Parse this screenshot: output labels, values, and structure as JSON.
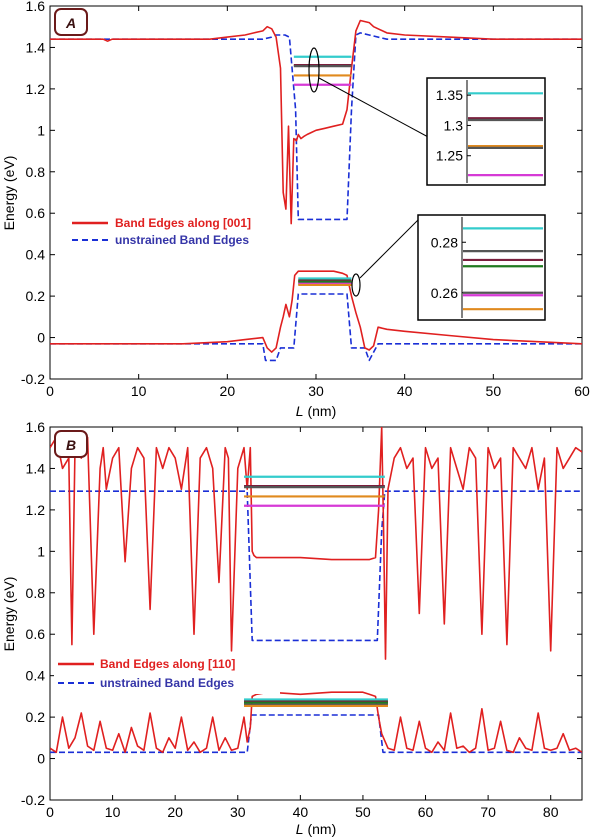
{
  "chart_data": [
    {
      "type": "line",
      "panel_label": "A",
      "xlabel_italic": "L",
      "xlabel_unit": " (nm)",
      "ylabel": "Energy (eV)",
      "xlim": [
        0,
        60
      ],
      "ylim": [
        -0.2,
        1.6
      ],
      "xticks": [
        "0",
        "10",
        "20",
        "30",
        "40",
        "50",
        "60"
      ],
      "yticks": [
        "-0.2",
        "0",
        "0.2",
        "0.4",
        "0.6",
        "0.8",
        "1",
        "1.2",
        "1.4",
        "1.6"
      ],
      "legend": [
        {
          "label": "Band Edges along [001]",
          "color": "#e02020",
          "style": "solid"
        },
        {
          "label": "unstrained Band Edges",
          "color": "#1a2fd6",
          "style": "dashed"
        }
      ],
      "series": [
        {
          "name": "Band Edges along [001]",
          "color": "#e02020",
          "segments": [
            {
              "x": [
                0,
                2,
                4,
                6,
                6.5,
                7,
                8,
                10,
                12,
                14,
                16,
                18,
                20,
                22,
                23,
                24,
                24.5,
                25,
                25.5,
                26,
                26.3,
                26.6,
                26.9,
                27.2,
                27.5,
                27.8,
                28,
                28.3,
                28.6,
                29,
                29.5,
                30,
                31,
                32,
                33,
                33.5,
                34,
                34.5,
                35,
                36,
                36.5,
                37,
                38,
                40,
                45,
                50,
                55,
                60
              ],
              "y": [
                1.44,
                1.44,
                1.44,
                1.44,
                1.43,
                1.44,
                1.44,
                1.44,
                1.44,
                1.44,
                1.44,
                1.44,
                1.45,
                1.46,
                1.47,
                1.48,
                1.5,
                1.49,
                1.45,
                1.3,
                0.7,
                0.62,
                1.02,
                0.55,
                0.96,
                0.95,
                0.98,
                0.96,
                0.97,
                0.98,
                0.99,
                1.0,
                1.01,
                1.02,
                1.03,
                1.1,
                1.3,
                1.48,
                1.53,
                1.52,
                1.5,
                1.49,
                1.47,
                1.46,
                1.45,
                1.44,
                1.44,
                1.44
              ]
            },
            {
              "x": [
                0,
                5,
                10,
                15,
                20,
                22,
                24,
                24.5,
                25,
                25.5,
                26,
                26.3,
                26.6,
                27,
                27.3,
                27.6,
                28,
                29,
                30,
                31,
                32,
                33,
                33.5,
                34,
                34.5,
                35,
                35.5,
                36,
                36.5,
                37,
                38,
                40,
                45,
                50,
                55,
                60
              ],
              "y": [
                -0.03,
                -0.03,
                -0.03,
                -0.03,
                -0.02,
                -0.01,
                0.0,
                -0.05,
                -0.07,
                -0.05,
                0.05,
                0.1,
                0.16,
                0.1,
                0.18,
                0.3,
                0.32,
                0.32,
                0.32,
                0.32,
                0.32,
                0.31,
                0.3,
                0.2,
                0.12,
                0.05,
                -0.05,
                -0.06,
                -0.04,
                0.05,
                0.04,
                0.03,
                0.01,
                -0.01,
                -0.02,
                -0.03
              ]
            }
          ]
        },
        {
          "name": "unstrained Band Edges",
          "color": "#1a2fd6",
          "segments": [
            {
              "x": [
                0,
                22,
                24,
                25,
                25.5,
                26.5,
                27,
                27.7,
                28,
                33.5,
                34,
                34.5,
                35,
                36,
                38,
                60
              ],
              "y": [
                1.44,
                1.44,
                1.44,
                1.45,
                1.46,
                1.46,
                1.45,
                1.1,
                0.57,
                0.57,
                1.1,
                1.46,
                1.47,
                1.46,
                1.44,
                1.44
              ]
            },
            {
              "x": [
                0,
                24,
                24.3,
                25.5,
                26,
                27.5,
                28,
                33.5,
                34,
                35.5,
                36,
                37,
                60
              ],
              "y": [
                -0.03,
                -0.03,
                -0.11,
                -0.11,
                -0.05,
                -0.05,
                0.21,
                0.21,
                -0.05,
                -0.05,
                -0.11,
                -0.03,
                -0.03
              ]
            }
          ]
        }
      ],
      "levels": [
        {
          "x0": 27.5,
          "x1": 34,
          "y": 1.355,
          "color": "#33cccc"
        },
        {
          "x0": 27.5,
          "x1": 34,
          "y": 1.315,
          "color": "#7a1f3d"
        },
        {
          "x0": 27.5,
          "x1": 34,
          "y": 1.31,
          "color": "#555555"
        },
        {
          "x0": 27.5,
          "x1": 34,
          "y": 1.265,
          "color": "#e08a1e"
        },
        {
          "x0": 27.5,
          "x1": 34,
          "y": 1.22,
          "color": "#d63ad6"
        },
        {
          "x0": 28,
          "x1": 34,
          "y": 0.285,
          "color": "#33cccc"
        },
        {
          "x0": 28,
          "x1": 34,
          "y": 0.276,
          "color": "#555555"
        },
        {
          "x0": 28,
          "x1": 34,
          "y": 0.272,
          "color": "#7a1f3d"
        },
        {
          "x0": 28,
          "x1": 34,
          "y": 0.269,
          "color": "#1f7a1f"
        },
        {
          "x0": 28,
          "x1": 34,
          "y": 0.26,
          "color": "#555555"
        },
        {
          "x0": 28,
          "x1": 34,
          "y": 0.259,
          "color": "#d63ad6"
        },
        {
          "x0": 28,
          "x1": 34,
          "y": 0.254,
          "color": "#e08a1e"
        }
      ],
      "insets": [
        {
          "yticks": [
            "1.35",
            "1.3",
            "1.25"
          ],
          "tick_values": [
            1.35,
            1.3,
            1.25
          ],
          "ylim": [
            1.205,
            1.375
          ],
          "levels": [
            {
              "y": 1.353,
              "color": "#33cccc"
            },
            {
              "y": 1.312,
              "color": "#7a1f3d"
            },
            {
              "y": 1.309,
              "color": "#555555"
            },
            {
              "y": 1.266,
              "color": "#e08a1e"
            },
            {
              "y": 1.263,
              "color": "#555555"
            },
            {
              "y": 1.218,
              "color": "#d63ad6"
            }
          ]
        },
        {
          "yticks": [
            "0.28",
            "0.26"
          ],
          "tick_values": [
            0.28,
            0.26
          ],
          "ylim": [
            0.25,
            0.29
          ],
          "levels": [
            {
              "y": 0.2855,
              "color": "#33cccc"
            },
            {
              "y": 0.2765,
              "color": "#555555"
            },
            {
              "y": 0.273,
              "color": "#7a1f3d"
            },
            {
              "y": 0.2705,
              "color": "#1f7a1f"
            },
            {
              "y": 0.26,
              "color": "#555555"
            },
            {
              "y": 0.259,
              "color": "#d63ad6"
            },
            {
              "y": 0.2535,
              "color": "#e08a1e"
            }
          ]
        }
      ]
    },
    {
      "type": "line",
      "panel_label": "B",
      "xlabel_italic": "L",
      "xlabel_unit": " (nm)",
      "ylabel": "Energy (eV)",
      "xlim": [
        0,
        85
      ],
      "ylim": [
        -0.2,
        1.6
      ],
      "xticks": [
        "0",
        "10",
        "20",
        "30",
        "40",
        "50",
        "60",
        "70",
        "80"
      ],
      "yticks": [
        "-0.2",
        "0",
        "0.2",
        "0.4",
        "0.6",
        "0.8",
        "1",
        "1.2",
        "1.4",
        "1.6"
      ],
      "legend": [
        {
          "label": "Band Edges along [110]",
          "color": "#e02020",
          "style": "solid"
        },
        {
          "label": "unstrained Band Edges",
          "color": "#1a2fd6",
          "style": "dashed"
        }
      ],
      "series": [
        {
          "name": "Band Edges along [110]",
          "color": "#e02020",
          "noisy": true,
          "segments": [
            {
              "x": [
                0,
                1,
                2,
                3,
                3.5,
                4,
                5,
                6,
                7,
                8,
                8.5,
                9,
                10,
                11,
                12,
                13,
                14,
                15,
                16,
                17,
                18,
                19,
                20,
                21,
                22,
                23,
                24,
                25,
                26,
                27,
                28,
                28.5,
                29,
                30,
                31,
                31.5,
                32,
                32.3,
                32.6,
                33,
                35,
                40,
                45,
                50,
                51,
                52,
                52.5,
                53,
                53.3,
                53.6,
                54,
                55,
                56,
                57,
                58,
                59,
                60,
                61,
                62,
                63,
                64,
                65,
                66,
                67,
                68,
                69,
                70,
                71,
                72,
                73,
                74,
                75,
                76,
                77,
                78,
                79,
                80,
                81,
                82,
                83,
                84,
                85
              ],
              "y": [
                1.5,
                1.55,
                1.4,
                1.45,
                0.55,
                1.5,
                1.45,
                1.55,
                0.6,
                1.4,
                1.5,
                1.3,
                1.45,
                1.5,
                0.95,
                1.4,
                1.5,
                1.45,
                0.72,
                1.5,
                1.4,
                1.5,
                1.45,
                1.3,
                1.5,
                0.6,
                1.45,
                1.5,
                1.4,
                0.85,
                1.5,
                1.45,
                0.52,
                1.4,
                1.5,
                1.3,
                1.5,
                1.0,
                0.98,
                0.97,
                0.97,
                0.97,
                0.96,
                0.96,
                0.96,
                0.97,
                1.2,
                1.6,
                1.1,
                0.48,
                1.3,
                1.45,
                1.5,
                1.4,
                1.45,
                0.7,
                1.5,
                1.4,
                1.45,
                0.65,
                1.5,
                1.4,
                1.3,
                1.5,
                1.45,
                0.6,
                1.5,
                1.4,
                1.45,
                0.55,
                1.5,
                1.45,
                1.4,
                1.5,
                1.3,
                1.45,
                0.52,
                1.5,
                1.4,
                1.45,
                1.5,
                1.48
              ]
            },
            {
              "x": [
                0,
                1,
                2,
                3,
                4,
                5,
                6,
                7,
                8,
                9,
                10,
                11,
                12,
                13,
                14,
                15,
                16,
                17,
                18,
                19,
                20,
                21,
                22,
                23,
                24,
                25,
                26,
                27,
                28,
                29,
                30,
                31,
                31.5,
                32,
                32.3,
                33,
                35,
                40,
                45,
                50,
                51,
                52,
                52.5,
                53,
                54,
                55,
                56,
                57,
                58,
                59,
                60,
                61,
                62,
                63,
                64,
                65,
                66,
                67,
                68,
                69,
                70,
                71,
                72,
                73,
                74,
                75,
                76,
                77,
                78,
                79,
                80,
                81,
                82,
                83,
                84,
                85
              ],
              "y": [
                0.05,
                0.03,
                0.2,
                0.05,
                0.1,
                0.22,
                0.06,
                0.04,
                0.18,
                0.05,
                0.04,
                0.12,
                0.03,
                0.15,
                0.06,
                0.04,
                0.22,
                0.05,
                0.03,
                0.1,
                0.05,
                0.2,
                0.04,
                0.08,
                0.03,
                0.05,
                0.2,
                0.04,
                0.1,
                0.04,
                0.05,
                0.2,
                0.08,
                0.15,
                0.3,
                0.31,
                0.32,
                0.31,
                0.32,
                0.32,
                0.31,
                0.3,
                0.2,
                0.12,
                0.05,
                0.04,
                0.2,
                0.05,
                0.04,
                0.18,
                0.05,
                0.03,
                0.08,
                0.04,
                0.22,
                0.05,
                0.06,
                0.03,
                0.05,
                0.24,
                0.04,
                0.05,
                0.18,
                0.04,
                0.03,
                0.1,
                0.05,
                0.04,
                0.22,
                0.05,
                0.04,
                0.05,
                0.12,
                0.04,
                0.05,
                0.03
              ]
            }
          ]
        },
        {
          "name": "unstrained Band Edges",
          "color": "#1a2fd6",
          "segments": [
            {
              "x": [
                0,
                31,
                31.5,
                32.3,
                52.3,
                53,
                53.5,
                85
              ],
              "y": [
                1.29,
                1.29,
                1.29,
                0.57,
                0.57,
                1.1,
                1.29,
                1.29
              ]
            },
            {
              "x": [
                0,
                31.5,
                32.2,
                52.5,
                53.2,
                85
              ],
              "y": [
                0.03,
                0.03,
                0.21,
                0.21,
                0.03,
                0.03
              ]
            }
          ]
        }
      ],
      "levels": [
        {
          "x0": 31,
          "x1": 53.5,
          "y": 1.36,
          "color": "#33cccc"
        },
        {
          "x0": 31,
          "x1": 53.5,
          "y": 1.315,
          "color": "#7a1f3d"
        },
        {
          "x0": 31,
          "x1": 53.5,
          "y": 1.31,
          "color": "#555555"
        },
        {
          "x0": 31,
          "x1": 53.5,
          "y": 1.265,
          "color": "#e08a1e"
        },
        {
          "x0": 31,
          "x1": 53.5,
          "y": 1.22,
          "color": "#d63ad6"
        },
        {
          "x0": 31,
          "x1": 54,
          "y": 0.285,
          "color": "#33cccc"
        },
        {
          "x0": 31,
          "x1": 54,
          "y": 0.276,
          "color": "#555555"
        },
        {
          "x0": 31,
          "x1": 54,
          "y": 0.272,
          "color": "#7a1f3d"
        },
        {
          "x0": 31,
          "x1": 54,
          "y": 0.269,
          "color": "#1f7a1f"
        },
        {
          "x0": 31,
          "x1": 54,
          "y": 0.26,
          "color": "#555555"
        },
        {
          "x0": 31,
          "x1": 54,
          "y": 0.254,
          "color": "#e08a1e"
        }
      ]
    }
  ]
}
